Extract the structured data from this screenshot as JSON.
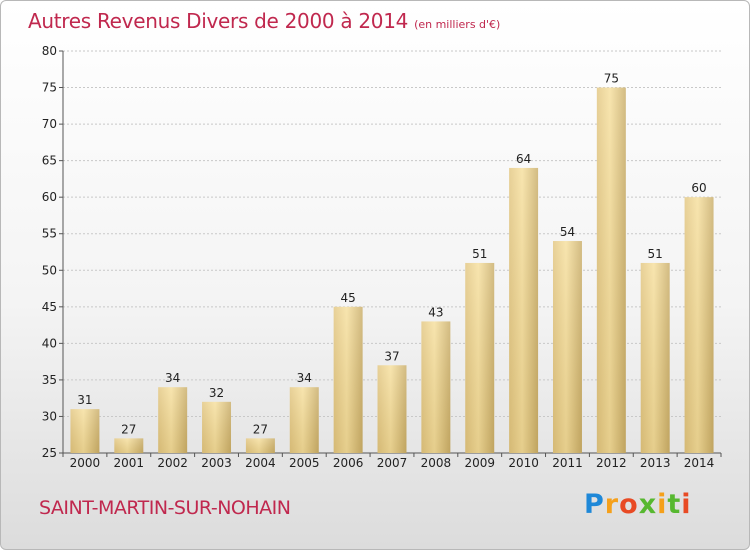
{
  "header": {
    "title": "Autres Revenus Divers de 2000 à 2014",
    "unit": "(en milliers d'€)"
  },
  "footer": {
    "commune": "SAINT-MARTIN-SUR-NOHAIN",
    "logo": "Proxiti"
  },
  "colors": {
    "title": "#c0284e",
    "bar_light": "#f6df9d",
    "bar_dark": "#c9ad68",
    "grid": "#c8c8c8"
  },
  "chart_data": {
    "type": "bar",
    "title": "Autres Revenus Divers de 2000 à 2014",
    "subtitle": "(en milliers d'€)",
    "xlabel": "",
    "ylabel": "",
    "categories": [
      "2000",
      "2001",
      "2002",
      "2003",
      "2004",
      "2005",
      "2006",
      "2007",
      "2008",
      "2009",
      "2010",
      "2011",
      "2012",
      "2013",
      "2014"
    ],
    "values": [
      31,
      27,
      34,
      32,
      27,
      34,
      45,
      37,
      43,
      51,
      64,
      54,
      75,
      51,
      60
    ],
    "ylim": [
      25,
      80
    ],
    "yticks": [
      25,
      30,
      35,
      40,
      45,
      50,
      55,
      60,
      65,
      70,
      75,
      80
    ],
    "grid": true,
    "legend": "none"
  }
}
